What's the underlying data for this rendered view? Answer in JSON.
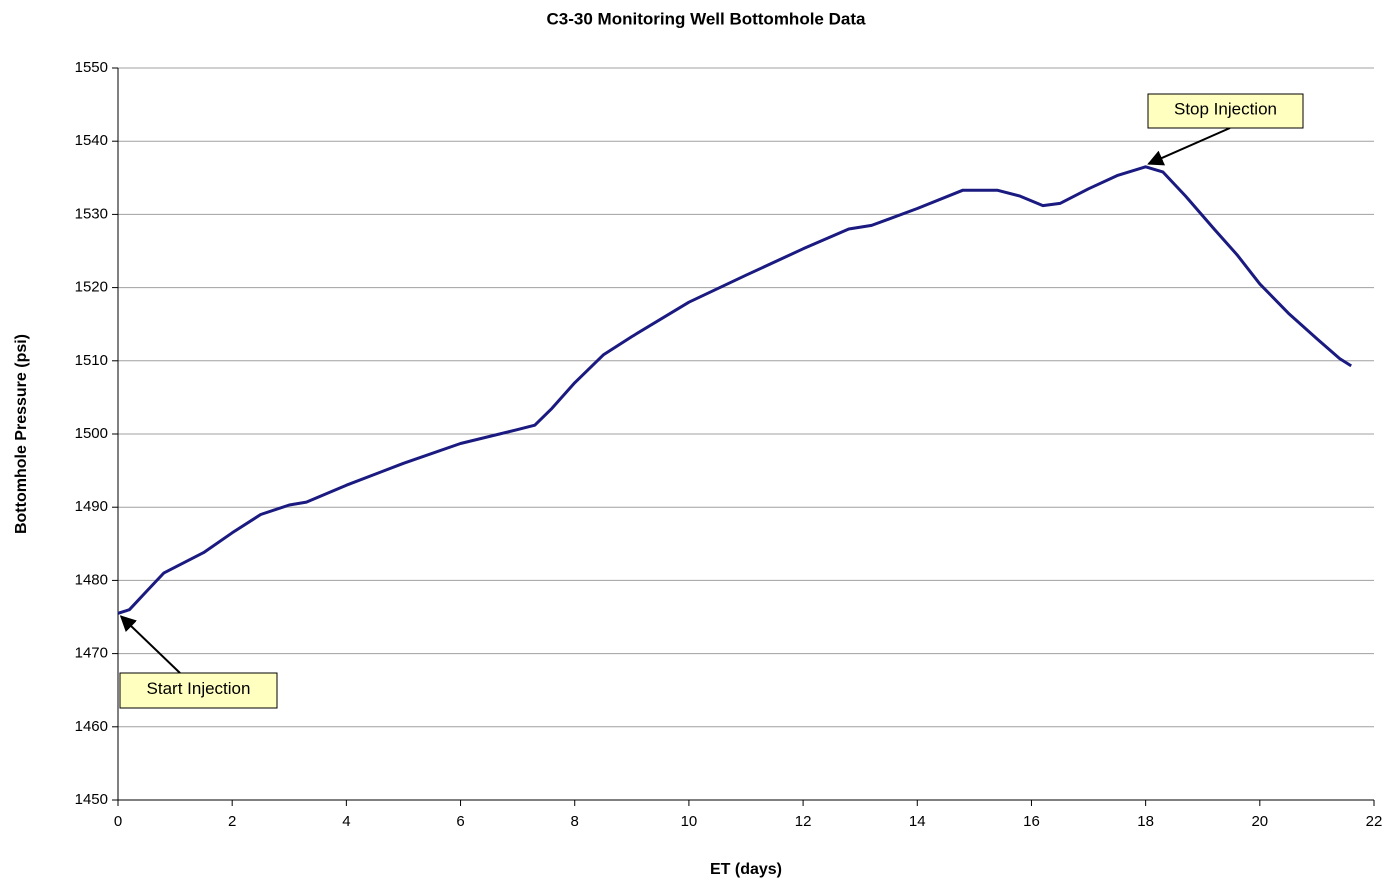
{
  "chart_data": {
    "type": "line",
    "title": "C3-30 Monitoring Well Bottomhole Data",
    "x_label": "ET (days)",
    "y_label": "Bottomhole Pressure (psi)",
    "xlim": [
      0,
      22
    ],
    "xticks": [
      0,
      2,
      4,
      6,
      8,
      10,
      12,
      14,
      16,
      18,
      20,
      22
    ],
    "ylim": [
      1450,
      1550
    ],
    "yticks": [
      1450,
      1460,
      1470,
      1480,
      1490,
      1500,
      1510,
      1520,
      1530,
      1540,
      1550
    ],
    "grid": true,
    "x": [
      0,
      0.2,
      0.5,
      0.8,
      1.0,
      1.5,
      2.0,
      2.5,
      3.0,
      3.3,
      4.0,
      5.0,
      6.0,
      7.0,
      7.3,
      7.6,
      8.0,
      8.5,
      9.0,
      10.0,
      11.0,
      12.0,
      12.8,
      13.2,
      14.0,
      14.8,
      15.4,
      15.8,
      16.2,
      16.5,
      17.0,
      17.5,
      18.0,
      18.3,
      18.7,
      19.2,
      19.6,
      20.0,
      20.5,
      21.0,
      21.4,
      21.6
    ],
    "series": [
      {
        "color": "#1a1a80",
        "values": [
          1475.5,
          1476,
          1478.5,
          1481,
          1481.8,
          1483.8,
          1486.5,
          1489,
          1490.3,
          1490.7,
          1493,
          1496,
          1498.7,
          1500.6,
          1501.2,
          1503.5,
          1507,
          1510.8,
          1513.3,
          1518,
          1521.7,
          1525.3,
          1528,
          1528.5,
          1530.8,
          1533.3,
          1533.3,
          1532.5,
          1531.2,
          1531.5,
          1533.5,
          1535.3,
          1536.5,
          1535.8,
          1532.5,
          1528,
          1524.5,
          1520.5,
          1516.5,
          1513,
          1510.3,
          1509.3
        ]
      }
    ],
    "annotations": [
      "Start Injection",
      "Stop Injection"
    ]
  }
}
